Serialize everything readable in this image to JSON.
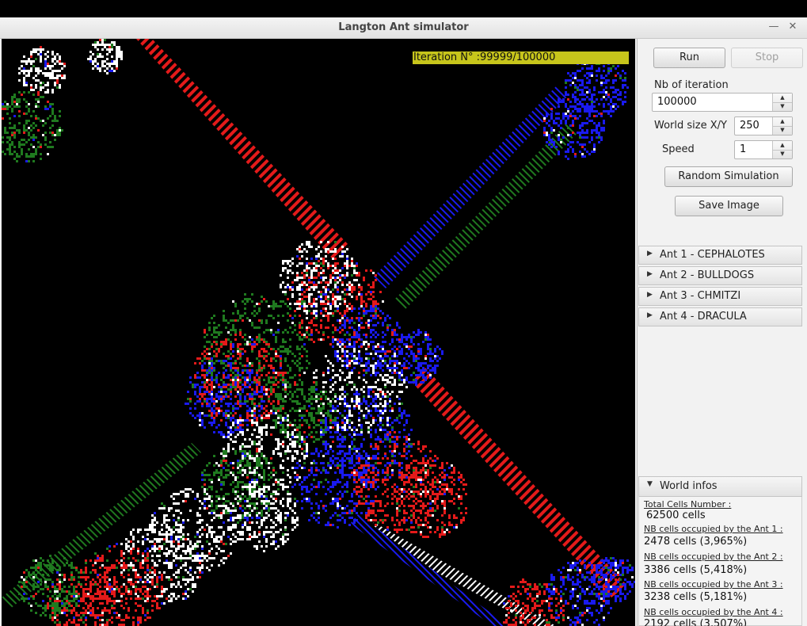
{
  "window": {
    "title": "Langton Ant simulator",
    "minimize_glyph": "—",
    "close_glyph": "✕"
  },
  "iteration_label": "Iteration N° :99999/100000",
  "controls": {
    "run_label": "Run",
    "stop_label": "Stop",
    "nb_iteration_label": "Nb of iteration",
    "nb_iteration_value": "100000",
    "world_size_label": "World size X/Y",
    "world_size_value": "250",
    "speed_label": "Speed",
    "speed_value": "1",
    "random_label": "Random Simulation",
    "save_label": "Save Image"
  },
  "ants": [
    {
      "label": "Ant 1 - CEPHALOTES",
      "color": "#e41a1a"
    },
    {
      "label": "Ant 2 - BULLDOGS",
      "color": "#1a1aef"
    },
    {
      "label": "Ant 3 - CHMITZI",
      "color": "#1f7a1f"
    },
    {
      "label": "Ant 4 - DRACULA",
      "color": "#ffffff"
    }
  ],
  "world_infos": {
    "title": "World infos",
    "total_label": "Total Cells Number :",
    "total_value": "62500 cells",
    "ant1_label": "NB cells occupied by the Ant 1 :",
    "ant1_value": "2478 cells (3,965%)",
    "ant2_label": "NB cells occupied by the Ant 2 :",
    "ant2_value": "3386 cells (5,418%)",
    "ant3_label": "NB cells occupied by the Ant 3 :",
    "ant3_value": "3238 cells (5,181%)",
    "ant4_label": "NB cells occupied by the Ant 4 :",
    "ant4_value": "2192 cells (3,507%)"
  },
  "icons": {
    "collapsed_arrow": "▶",
    "expanded_arrow": "▼",
    "spinner_up": "▲",
    "spinner_down": "▼"
  }
}
